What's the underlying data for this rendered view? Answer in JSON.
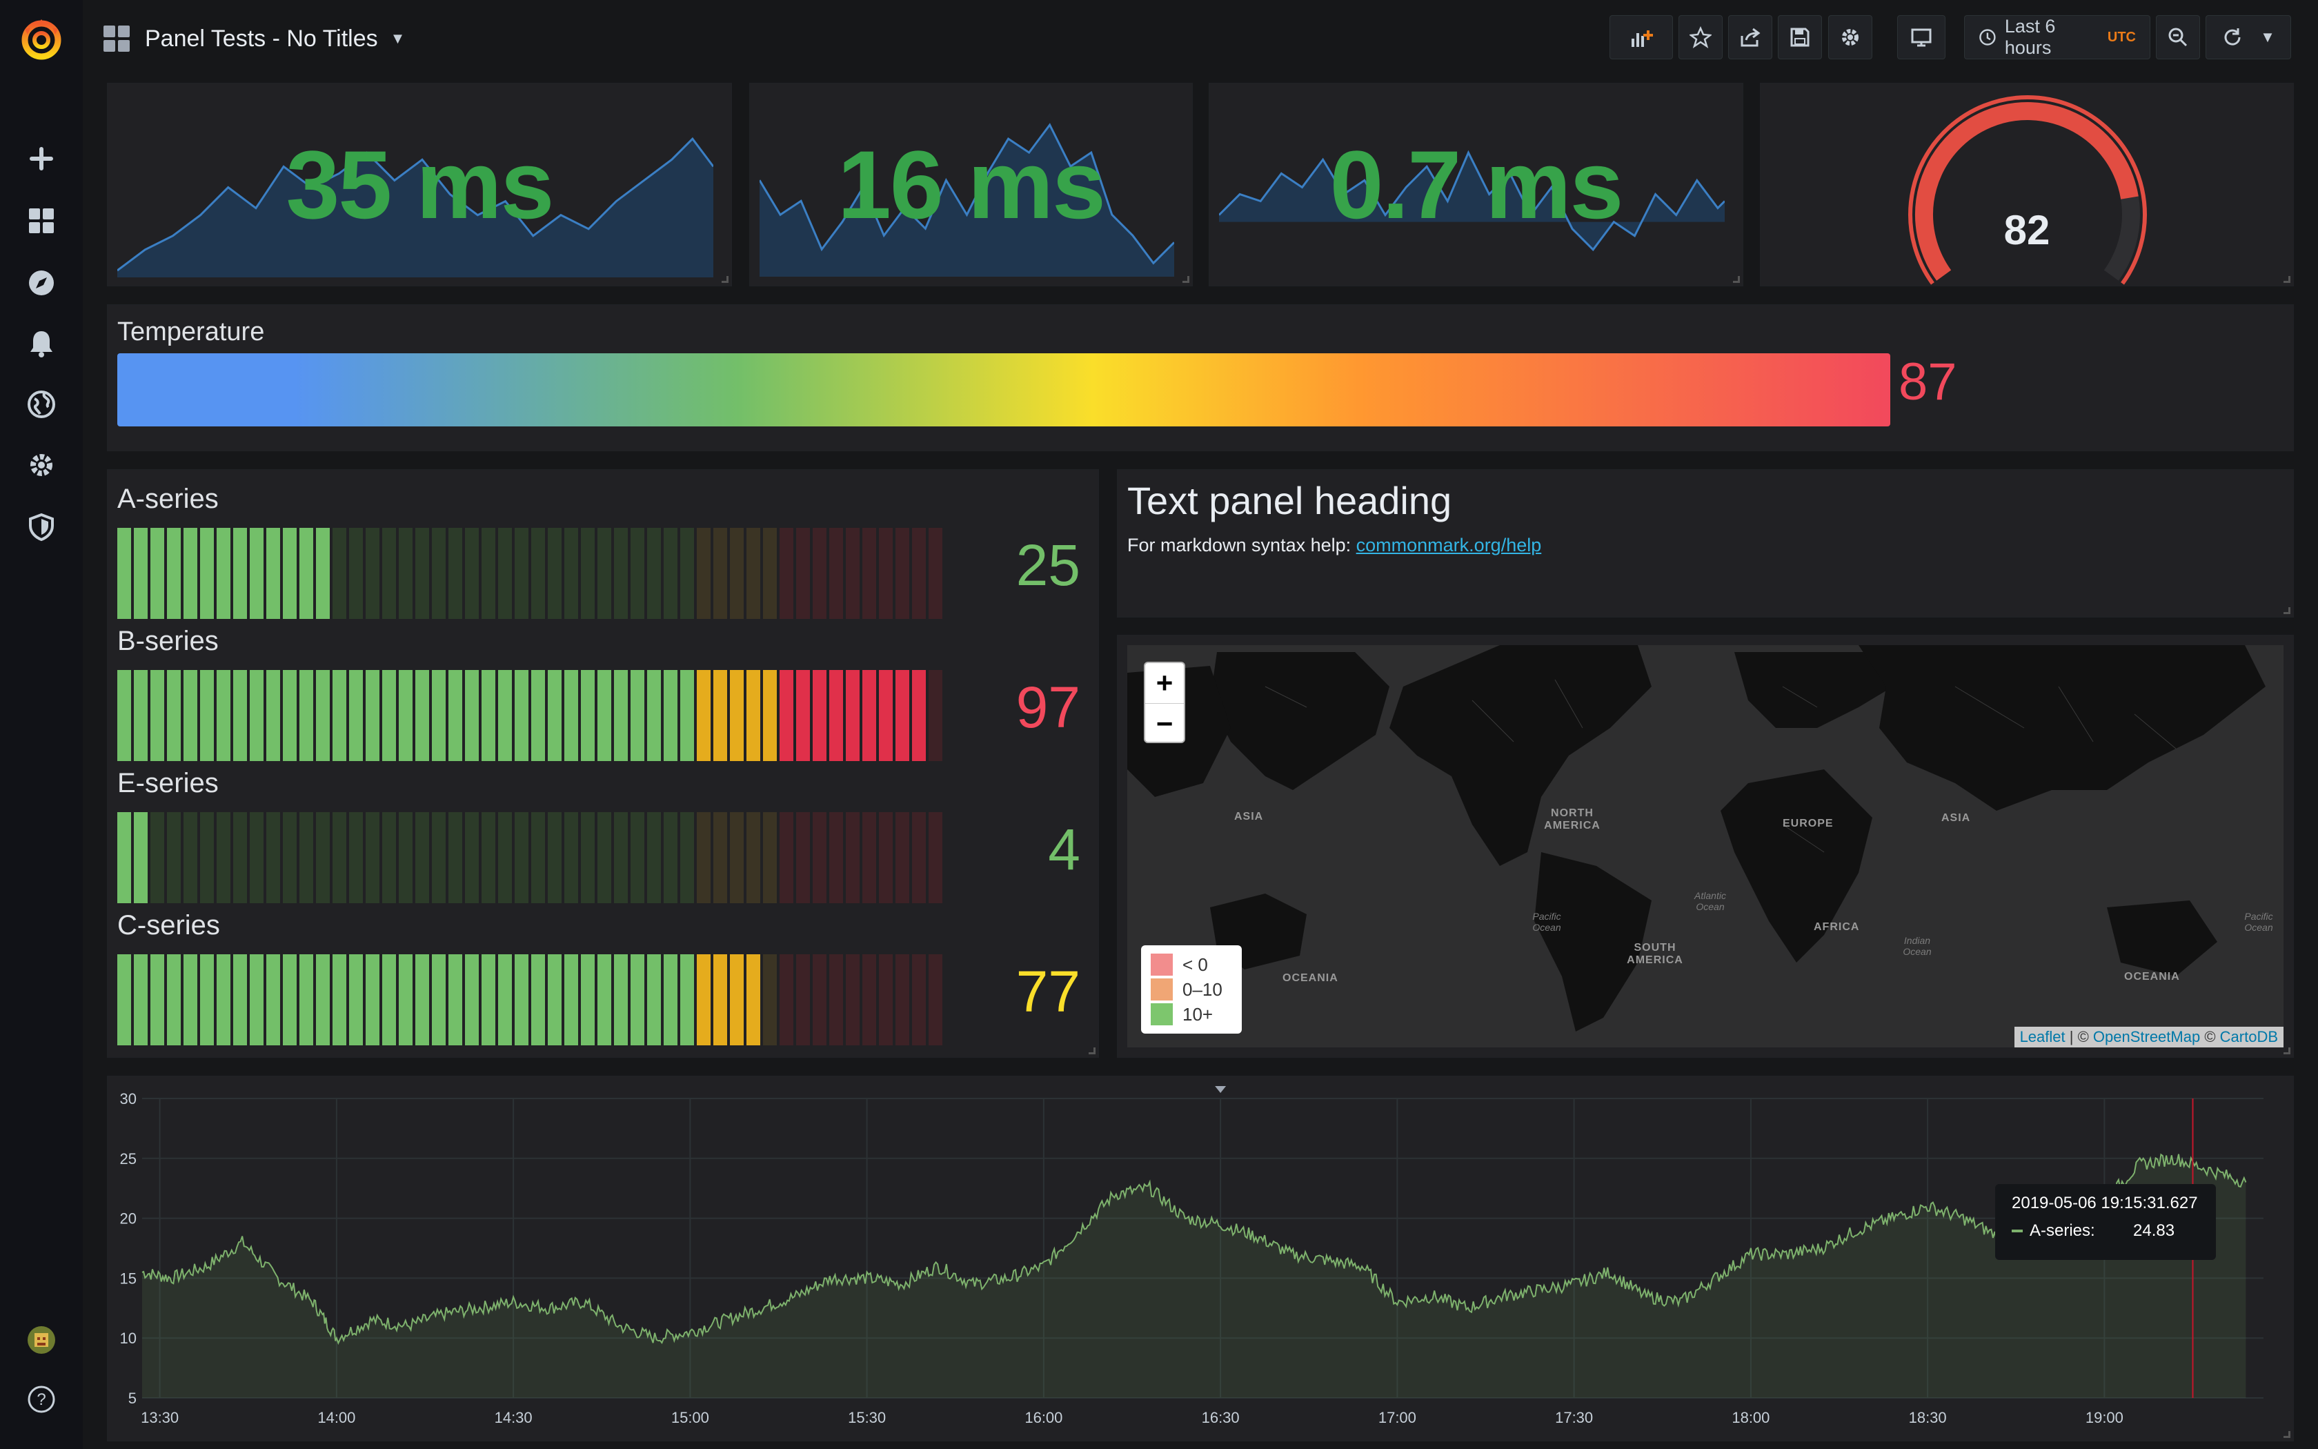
{
  "dashboard": {
    "title": "Panel Tests - No Titles",
    "time_range": "Last 6 hours",
    "timezone": "UTC"
  },
  "sidebar": {
    "items": [
      "add-icon",
      "dashboards-icon",
      "explore-icon",
      "alerting-icon",
      "globe-icon",
      "configuration-icon",
      "shield-icon"
    ]
  },
  "stats": [
    {
      "value": "35 ms",
      "color": "#37a34a"
    },
    {
      "value": "16 ms",
      "color": "#37a34a"
    },
    {
      "value": "0.7 ms",
      "color": "#37a34a"
    }
  ],
  "gauge": {
    "value": "82",
    "level": 82,
    "min": 0,
    "max": 100
  },
  "temperature": {
    "title": "Temperature",
    "value": "87",
    "level": 0.87,
    "color": "#f2495c"
  },
  "bar_gauges": [
    {
      "title": "A-series",
      "value": "25",
      "level": 25,
      "color": "#73bf69"
    },
    {
      "title": "B-series",
      "value": "97",
      "level": 97,
      "color": "#f2495c"
    },
    {
      "title": "E-series",
      "value": "4",
      "level": 4,
      "color": "#73bf69"
    },
    {
      "title": "C-series",
      "value": "77",
      "level": 77,
      "color": "#fade2a"
    }
  ],
  "text_panel": {
    "heading": "Text panel heading",
    "help_prefix": "For markdown syntax help: ",
    "help_link": "commonmark.org/help"
  },
  "worldmap": {
    "zoom_in": "+",
    "zoom_out": "−",
    "legend": [
      {
        "label": "< 0",
        "color": "#f28d8d"
      },
      {
        "label": "0–10",
        "color": "#f0a675"
      },
      {
        "label": "10+",
        "color": "#7dc66d"
      }
    ],
    "attribution": {
      "leaflet": "Leaflet",
      "sep1": " | © ",
      "osm": "OpenStreetMap",
      "sep2": " © ",
      "carto": "CartoDB"
    },
    "labels": {
      "north_america": "NORTH AMERICA",
      "south_america": "SOUTH AMERICA",
      "europe": "EUROPE",
      "asia_west": "ASIA",
      "asia_east": "ASIA",
      "africa": "AFRICA",
      "oceania_west": "OCEANIA",
      "oceania_east": "OCEANIA",
      "pacific_west": "Pacific Ocean",
      "pacific_east": "Pacific Ocean",
      "atlantic": "Atlantic Ocean",
      "indian": "Indian Ocean"
    }
  },
  "tooltip": {
    "time": "2019-05-06 19:15:31.627",
    "series": "A-series:",
    "value": "24.83"
  },
  "chart_data": {
    "type": "area",
    "series": [
      {
        "name": "A-series",
        "color": "#7eb26d"
      }
    ],
    "x_ticks": [
      "13:30",
      "14:00",
      "14:30",
      "15:00",
      "15:30",
      "16:00",
      "16:30",
      "17:00",
      "17:30",
      "18:00",
      "18:30",
      "19:00"
    ],
    "y_ticks": [
      "30",
      "25",
      "20",
      "15",
      "10",
      "5"
    ],
    "ylim": [
      5,
      30
    ],
    "grid": true,
    "points": [
      [
        "13:27",
        15.5
      ],
      [
        "13:32",
        15.0
      ],
      [
        "13:38",
        16.0
      ],
      [
        "13:44",
        18.0
      ],
      [
        "13:50",
        15.0
      ],
      [
        "13:56",
        13.0
      ],
      [
        "14:00",
        10.0
      ],
      [
        "14:06",
        11.5
      ],
      [
        "14:12",
        11.0
      ],
      [
        "14:18",
        12.0
      ],
      [
        "14:24",
        12.5
      ],
      [
        "14:30",
        13.0
      ],
      [
        "14:36",
        12.5
      ],
      [
        "14:42",
        13.0
      ],
      [
        "14:48",
        11.0
      ],
      [
        "14:54",
        10.0
      ],
      [
        "15:00",
        10.5
      ],
      [
        "15:06",
        11.5
      ],
      [
        "15:12",
        12.5
      ],
      [
        "15:18",
        13.5
      ],
      [
        "15:24",
        15.0
      ],
      [
        "15:30",
        15.0
      ],
      [
        "15:36",
        14.5
      ],
      [
        "15:42",
        16.0
      ],
      [
        "15:48",
        14.5
      ],
      [
        "15:54",
        15.0
      ],
      [
        "16:00",
        16.0
      ],
      [
        "16:06",
        19.0
      ],
      [
        "16:12",
        22.0
      ],
      [
        "16:18",
        22.5
      ],
      [
        "16:24",
        20.0
      ],
      [
        "16:30",
        19.5
      ],
      [
        "16:36",
        18.5
      ],
      [
        "16:42",
        17.0
      ],
      [
        "16:48",
        16.5
      ],
      [
        "16:54",
        16.0
      ],
      [
        "17:00",
        13.0
      ],
      [
        "17:06",
        13.5
      ],
      [
        "17:12",
        12.5
      ],
      [
        "17:18",
        13.5
      ],
      [
        "17:24",
        14.0
      ],
      [
        "17:30",
        14.5
      ],
      [
        "17:36",
        15.5
      ],
      [
        "17:42",
        13.5
      ],
      [
        "17:48",
        13.0
      ],
      [
        "17:54",
        15.0
      ],
      [
        "18:00",
        17.0
      ],
      [
        "18:06",
        17.0
      ],
      [
        "18:12",
        17.5
      ],
      [
        "18:18",
        19.0
      ],
      [
        "18:24",
        20.0
      ],
      [
        "18:30",
        21.0
      ],
      [
        "18:36",
        20.0
      ],
      [
        "18:42",
        18.5
      ],
      [
        "18:48",
        19.5
      ],
      [
        "18:54",
        20.5
      ],
      [
        "19:00",
        21.5
      ],
      [
        "19:06",
        24.5
      ],
      [
        "19:12",
        25.0
      ],
      [
        "19:18",
        24.0
      ],
      [
        "19:24",
        23.0
      ]
    ]
  }
}
